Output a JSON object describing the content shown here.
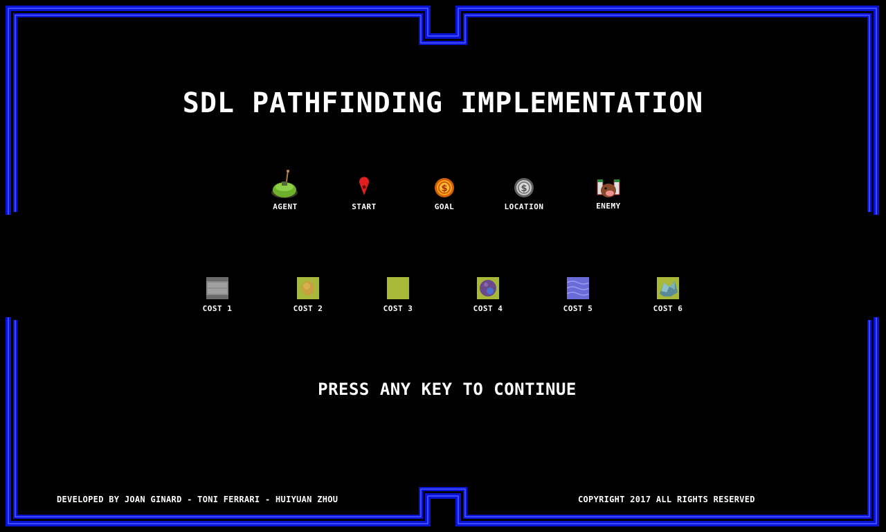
{
  "title": "SDL PATHFINDING IMPLEMENTATION",
  "legend": [
    {
      "label": "AGENT",
      "icon": "agent-tank-icon"
    },
    {
      "label": "START",
      "icon": "start-pin-icon"
    },
    {
      "label": "GOAL",
      "icon": "goal-coin-icon"
    },
    {
      "label": "LOCATION",
      "icon": "location-coin-icon"
    },
    {
      "label": "ENEMY",
      "icon": "enemy-monster-icon"
    }
  ],
  "tiles": [
    {
      "label": "COST 1",
      "icon": "stone-tile-icon"
    },
    {
      "label": "COST 2",
      "icon": "bush-tile-icon"
    },
    {
      "label": "COST 3",
      "icon": "grass-tile-icon"
    },
    {
      "label": "COST 4",
      "icon": "rock-tile-icon"
    },
    {
      "label": "COST 5",
      "icon": "water-tile-icon"
    },
    {
      "label": "COST 6",
      "icon": "crystal-tile-icon"
    }
  ],
  "prompt": "PRESS ANY KEY TO CONTINUE",
  "footer": {
    "developers": "DEVELOPED BY JOAN GINARD - TONI FERRARI - HUIYUAN ZHOU",
    "copyright": "COPYRIGHT 2017 ALL RIGHTS RESERVED"
  },
  "colors": {
    "background": "#000000",
    "border": "#1a1aff",
    "text": "#ffffff"
  }
}
